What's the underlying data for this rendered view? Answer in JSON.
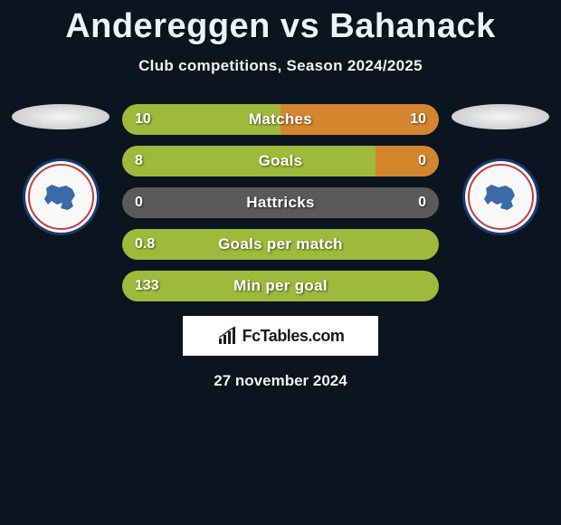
{
  "title": "Andereggen vs Bahanack",
  "subtitle": "Club competitions, Season 2024/2025",
  "date": "27 november 2024",
  "logo_text": "FcTables.com",
  "colors": {
    "left": "#9fb93a",
    "right": "#d4862f",
    "neutral": "#5a5a5a"
  },
  "club_badge": {
    "ring_outer": "#1a3a6e",
    "ring_inner": "#c04040",
    "map_fill": "#3a6aa8"
  },
  "bars": [
    {
      "label": "Matches",
      "left_val": "10",
      "right_val": "10",
      "left_pct": 50,
      "right_pct": 50
    },
    {
      "label": "Goals",
      "left_val": "8",
      "right_val": "0",
      "left_pct": 80,
      "right_pct": 20
    },
    {
      "label": "Hattricks",
      "left_val": "0",
      "right_val": "0",
      "left_pct": 50,
      "right_pct": 50,
      "neutral": true
    },
    {
      "label": "Goals per match",
      "left_val": "0.8",
      "right_val": "",
      "left_pct": 100,
      "right_pct": 0
    },
    {
      "label": "Min per goal",
      "left_val": "133",
      "right_val": "",
      "left_pct": 100,
      "right_pct": 0
    }
  ]
}
